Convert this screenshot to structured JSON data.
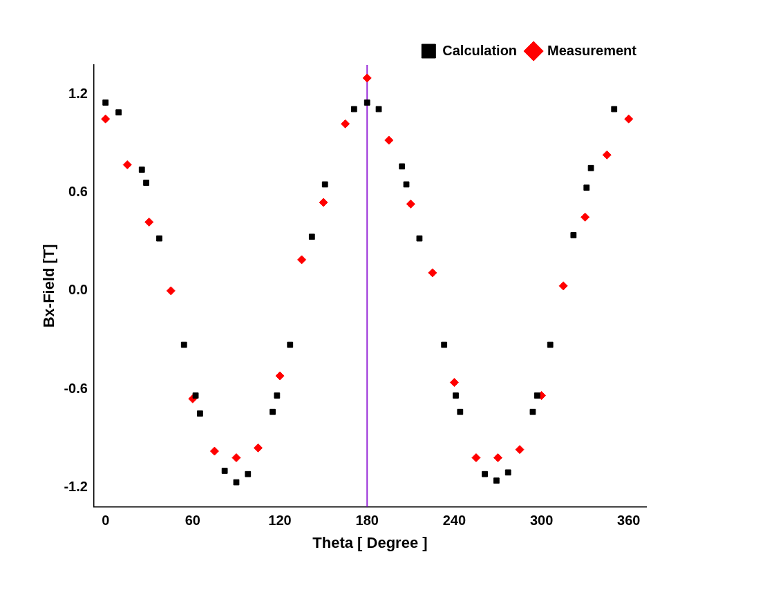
{
  "chart_data": {
    "type": "scatter",
    "xlabel": "Theta [ Degree ]",
    "ylabel": "Bx-Field [T]",
    "xlim": [
      -8,
      372
    ],
    "xticks": [
      0,
      60,
      120,
      180,
      240,
      300,
      360
    ],
    "ylim": [
      -1.32,
      1.38
    ],
    "yticks": [
      -1.2,
      -0.6,
      {
        "value": 0,
        "label": "0.0"
      },
      0.6,
      1.2
    ],
    "grid": false,
    "legend": "upper right",
    "series": [
      {
        "name": "Calculation",
        "color": "#000000",
        "marker": "square",
        "x": [
          0,
          9,
          25,
          28,
          37,
          54,
          62,
          65,
          82,
          90,
          98,
          115,
          118,
          127,
          142,
          151,
          171,
          180,
          188,
          204,
          207,
          216,
          233,
          241,
          244,
          261,
          269,
          277,
          294,
          297,
          306,
          322,
          331,
          334,
          350
        ],
        "values": [
          1.15,
          1.09,
          0.74,
          0.66,
          0.32,
          -0.33,
          -0.64,
          -0.75,
          -1.1,
          -1.17,
          -1.12,
          -0.74,
          -0.64,
          -0.33,
          0.33,
          0.65,
          1.11,
          1.15,
          1.11,
          0.76,
          0.65,
          0.32,
          -0.33,
          -0.64,
          -0.74,
          -1.12,
          -1.16,
          -1.11,
          -0.74,
          -0.64,
          -0.33,
          0.34,
          0.63,
          0.75,
          1.11
        ]
      },
      {
        "name": "Measurement",
        "color": "#ff0000",
        "marker": "diamond",
        "x": [
          0,
          15,
          30,
          45,
          60,
          75,
          90,
          105,
          120,
          135,
          150,
          165,
          180,
          195,
          210,
          225,
          240,
          255,
          270,
          285,
          300,
          315,
          330,
          345,
          360
        ],
        "values": [
          1.05,
          0.77,
          0.42,
          0.0,
          -0.66,
          -0.98,
          -1.02,
          -0.96,
          -0.52,
          0.19,
          0.54,
          1.02,
          1.3,
          0.92,
          0.53,
          0.11,
          -0.56,
          -1.02,
          -1.02,
          -0.97,
          -0.64,
          0.03,
          0.45,
          0.83,
          1.05
        ]
      }
    ],
    "vlines": [
      {
        "x": 180,
        "color": "#9b30d9"
      }
    ]
  }
}
